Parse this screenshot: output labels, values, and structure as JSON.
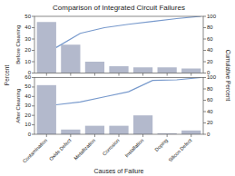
{
  "chart_data": [
    {
      "type": "bar",
      "title": "Comparison of Integrated Circuit Failures",
      "ylabel": "Before Cleaning",
      "annotations": [
        "Percent",
        "Cumulative Percent"
      ],
      "categories": [
        null,
        null,
        null,
        null,
        null,
        null,
        null
      ],
      "series": [
        {
          "type": "bar",
          "color": "#b3b9cc",
          "values": [
            45,
            25,
            10,
            6,
            5,
            5,
            4
          ]
        },
        {
          "type": "line",
          "axis": "y2",
          "color": "#7799cc",
          "values": [
            45,
            70,
            80,
            86,
            91,
            96,
            100
          ]
        }
      ],
      "ylim": [
        0,
        50
      ],
      "yticks": [
        0,
        10,
        20,
        30,
        40,
        50
      ],
      "y2lim": [
        0,
        100
      ],
      "y2ticks": [
        0,
        20,
        40,
        60,
        80,
        100
      ]
    },
    {
      "type": "bar",
      "xlabel": "Causes of Failure",
      "ylabel": "After Cleaning",
      "categories": [
        "Contamination",
        "Oxide Defect",
        "Metallization",
        "Corrosion",
        "Installation",
        "Doping",
        "Silicon Defect"
      ],
      "series": [
        {
          "type": "bar",
          "color": "#b3b9cc",
          "values": [
            52,
            5,
            9,
            9,
            20,
            1,
            4
          ]
        },
        {
          "type": "line",
          "axis": "y2",
          "color": "#7799cc",
          "values": [
            52,
            57,
            66,
            75,
            95,
            96,
            100
          ]
        }
      ],
      "ylim": [
        0,
        60
      ],
      "yticks": [
        0,
        10,
        20,
        30,
        40,
        50,
        60
      ],
      "y2lim": [
        0,
        100
      ],
      "y2ticks": [
        0,
        20,
        40,
        60,
        80,
        100
      ]
    }
  ]
}
